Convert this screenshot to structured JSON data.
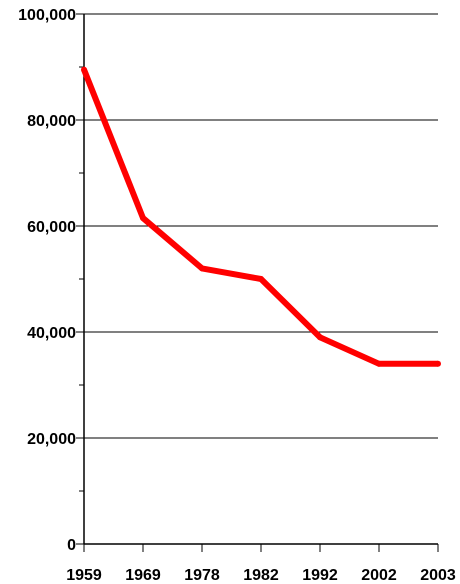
{
  "chart_data": {
    "type": "line",
    "categories": [
      "1959",
      "1969",
      "1978",
      "1982",
      "1992",
      "2002",
      "2003"
    ],
    "series": [
      {
        "values": [
          89500,
          61500,
          52000,
          50000,
          39000,
          34000,
          34000
        ],
        "color": "#ff0000"
      }
    ],
    "y_ticks": [
      "0",
      "20,000",
      "40,000",
      "60,000",
      "80,000",
      "100,000"
    ],
    "ylim": [
      0,
      100000
    ],
    "y_minor_step": 10000,
    "grid": true,
    "title": "",
    "xlabel": "",
    "ylabel": ""
  }
}
